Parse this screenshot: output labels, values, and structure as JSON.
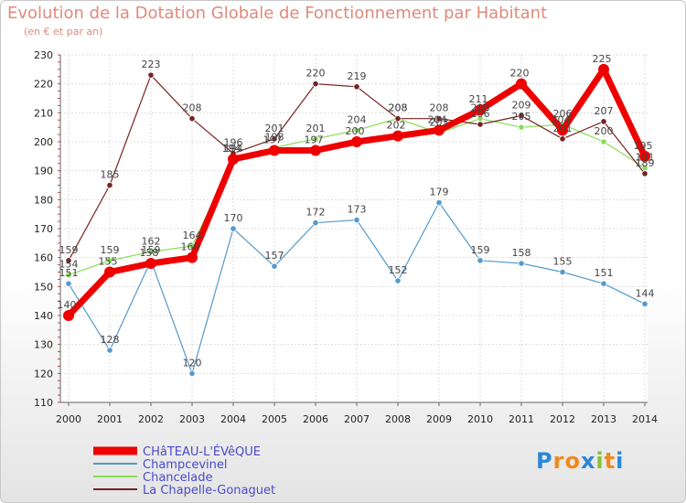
{
  "chart_data": {
    "type": "line",
    "title": "Evolution de la Dotation Globale de Fonctionnement par Habitant",
    "subtitle": "(en € et par an)",
    "xlabel": "",
    "ylabel": "",
    "x": [
      "2000",
      "2001",
      "2002",
      "2003",
      "2004",
      "2005",
      "2006",
      "2007",
      "2008",
      "2009",
      "2010",
      "2011",
      "2012",
      "2013",
      "2014"
    ],
    "ylim": [
      110,
      230
    ],
    "yticks": [
      "110",
      "120",
      "130",
      "140",
      "150",
      "160",
      "170",
      "180",
      "190",
      "200",
      "210",
      "220",
      "230"
    ],
    "grid": true,
    "legend_position": "bottom-left",
    "series": [
      {
        "name": "CHâTEAU-L'ÉVêQUE",
        "color": "#ee0000",
        "values": [
          140,
          155,
          158,
          160,
          194,
          197,
          197,
          200,
          202,
          204,
          211,
          220,
          204,
          225,
          195
        ]
      },
      {
        "name": "Champcevinel",
        "color": "#5599cc",
        "values": [
          151,
          128,
          159,
          120,
          170,
          157,
          172,
          173,
          152,
          179,
          159,
          158,
          155,
          151,
          144
        ]
      },
      {
        "name": "Chancelade",
        "color": "#88dd55",
        "values": [
          154,
          159,
          162,
          164,
          194,
          198,
          201,
          204,
          208,
          203,
          208,
          205,
          206,
          200,
          191
        ]
      },
      {
        "name": "La Chapelle-Gonaguet",
        "color": "#772222",
        "values": [
          159,
          185,
          223,
          208,
          196,
          201,
          220,
          219,
          208,
          208,
          206,
          209,
          201,
          207,
          189
        ]
      }
    ]
  },
  "brand": {
    "letters": [
      "P",
      "r",
      "o",
      "x",
      "i",
      "t",
      "i"
    ],
    "colors": [
      "#2b87d6",
      "#f08a1c",
      "#f08a1c",
      "#2b87d6",
      "#88c23a",
      "#f08a1c",
      "#2b87d6"
    ]
  }
}
